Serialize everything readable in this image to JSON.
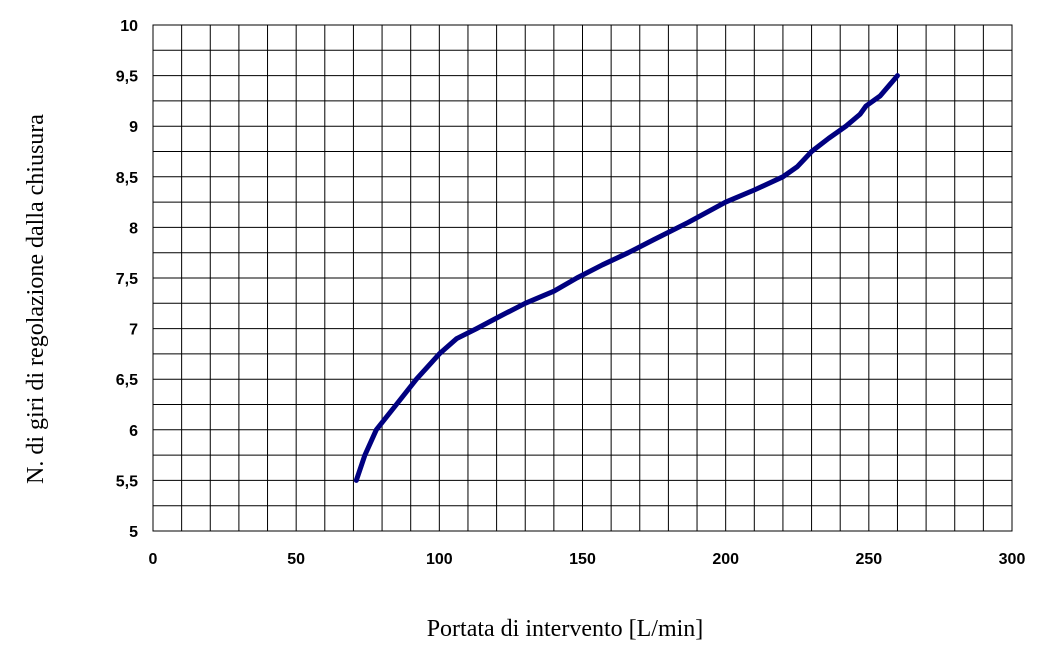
{
  "chart_data": {
    "type": "line",
    "title": "",
    "xlabel": "Portata di intervento [L/min]",
    "ylabel": "N. di giri di regolazione dalla chiusura",
    "xlim": [
      0,
      300
    ],
    "ylim": [
      5,
      10
    ],
    "x_ticks": [
      0,
      50,
      100,
      150,
      200,
      250,
      300
    ],
    "x_tick_labels": [
      "0",
      "50",
      "100",
      "150",
      "200",
      "250",
      "300"
    ],
    "y_ticks": [
      5,
      5.5,
      6,
      6.5,
      7,
      7.5,
      8,
      8.5,
      9,
      9.5,
      10
    ],
    "y_tick_labels": [
      "5",
      "5,5",
      "6",
      "6,5",
      "7",
      "7,5",
      "8",
      "8,5",
      "9",
      "9,5",
      "10"
    ],
    "grid": true,
    "legend": "none",
    "series": [
      {
        "color": "#000080",
        "x": [
          71,
          74,
          78,
          85,
          92,
          100,
          106,
          113,
          121,
          130,
          140,
          148,
          157,
          166,
          175,
          187,
          200,
          210,
          220,
          225,
          230,
          236,
          242,
          247,
          249,
          254,
          260
        ],
        "y": [
          5.5,
          5.75,
          6.0,
          6.25,
          6.5,
          6.75,
          6.9,
          7.0,
          7.12,
          7.25,
          7.37,
          7.5,
          7.63,
          7.75,
          7.88,
          8.05,
          8.25,
          8.37,
          8.5,
          8.6,
          8.75,
          8.88,
          9.0,
          9.12,
          9.2,
          9.3,
          9.5
        ]
      }
    ]
  }
}
